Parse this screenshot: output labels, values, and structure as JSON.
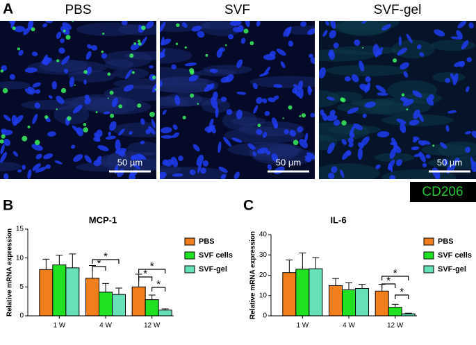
{
  "panel_a": {
    "label": "A",
    "images": [
      {
        "title": "PBS",
        "scale_bar": "50 µm"
      },
      {
        "title": "SVF",
        "scale_bar": "50 µm"
      },
      {
        "title": "SVF-gel",
        "scale_bar": "50 µm"
      }
    ],
    "stain_label": "CD206"
  },
  "chart_data": [
    {
      "type": "bar",
      "panel_label": "B",
      "title": "MCP-1",
      "y_label": "Relative mRNA expression",
      "categories": [
        "1 W",
        "4 W",
        "12 W"
      ],
      "series": [
        {
          "name": "PBS",
          "color": "#f07f1b",
          "values": [
            8.0,
            6.5,
            5.0
          ],
          "errors": [
            1.8,
            2.2,
            2.2
          ]
        },
        {
          "name": "SVF cells",
          "color": "#22e022",
          "values": [
            8.8,
            4.1,
            2.8
          ],
          "errors": [
            1.7,
            1.5,
            0.8
          ]
        },
        {
          "name": "SVF-gel",
          "color": "#66e0b8",
          "values": [
            8.3,
            3.7,
            1.0
          ],
          "errors": [
            2.4,
            1.1,
            0.2
          ]
        }
      ],
      "ylim": [
        0,
        15
      ],
      "yticks": [
        0,
        5,
        10,
        15
      ],
      "annotations": [
        "*",
        "*",
        "*",
        "*",
        "*"
      ]
    },
    {
      "type": "bar",
      "panel_label": "C",
      "title": "IL-6",
      "y_label": "Relative mRNA expression",
      "categories": [
        "1 W",
        "4 W",
        "12 W"
      ],
      "series": [
        {
          "name": "PBS",
          "color": "#f07f1b",
          "values": [
            21.3,
            14.9,
            12.2
          ],
          "errors": [
            6.2,
            3.5,
            3.3
          ]
        },
        {
          "name": "SVF cells",
          "color": "#22e022",
          "values": [
            23.0,
            12.8,
            4.2
          ],
          "errors": [
            8.0,
            3.5,
            1.5
          ]
        },
        {
          "name": "SVF-gel",
          "color": "#66e0b8",
          "values": [
            23.2,
            13.5,
            1.0
          ],
          "errors": [
            5.5,
            2.0,
            0.3
          ]
        }
      ],
      "ylim": [
        0,
        40
      ],
      "yticks": [
        0,
        10,
        20,
        30,
        40
      ],
      "annotations": [
        "*",
        "*",
        "*"
      ]
    }
  ]
}
